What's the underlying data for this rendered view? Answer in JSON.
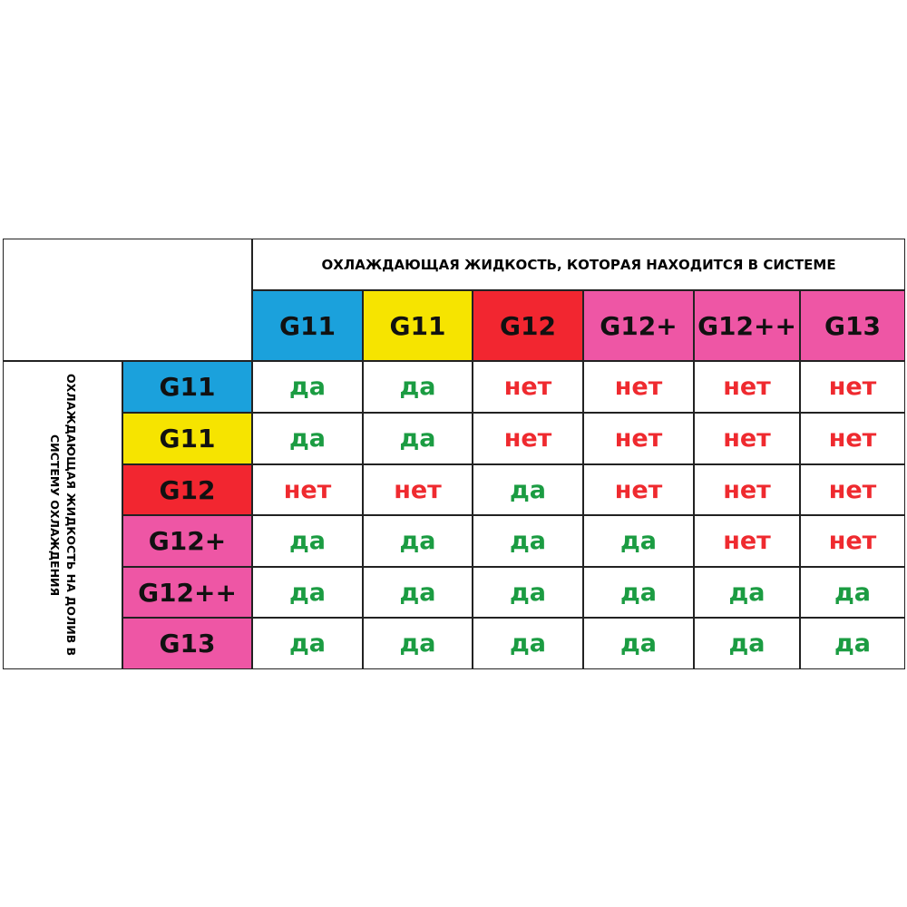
{
  "table": {
    "column_header": "ОХЛАЖДАЮЩАЯ ЖИДКОСТЬ, КОТОРАЯ НАХОДИТСЯ В СИСТЕМЕ",
    "row_header": "ОХЛАЖДАЮЩАЯ ЖИДКОСТЬ НА ДОЛИВ В СИСТЕМУ ОХЛАЖДЕНИЯ",
    "columns": [
      {
        "label": "G11",
        "color": "#1ba1dc"
      },
      {
        "label": "G11",
        "color": "#f6e400"
      },
      {
        "label": "G12",
        "color": "#f22630"
      },
      {
        "label": "G12+",
        "color": "#ee56a5"
      },
      {
        "label": "G12++",
        "color": "#ee56a5"
      },
      {
        "label": "G13",
        "color": "#ee56a5"
      }
    ],
    "rows": [
      {
        "label": "G11",
        "color": "#1ba1dc",
        "cells": [
          {
            "text": "да",
            "color": "#1b9c42"
          },
          {
            "text": "да",
            "color": "#1b9c42"
          },
          {
            "text": "нет",
            "color": "#ef2a2f"
          },
          {
            "text": "нет",
            "color": "#ef2a2f"
          },
          {
            "text": "нет",
            "color": "#ef2a2f"
          },
          {
            "text": "нет",
            "color": "#ef2a2f"
          }
        ]
      },
      {
        "label": "G11",
        "color": "#f6e400",
        "cells": [
          {
            "text": "да",
            "color": "#1b9c42"
          },
          {
            "text": "да",
            "color": "#1b9c42"
          },
          {
            "text": "нет",
            "color": "#ef2a2f"
          },
          {
            "text": "нет",
            "color": "#ef2a2f"
          },
          {
            "text": "нет",
            "color": "#ef2a2f"
          },
          {
            "text": "нет",
            "color": "#ef2a2f"
          }
        ]
      },
      {
        "label": "G12",
        "color": "#f22630",
        "cells": [
          {
            "text": "нет",
            "color": "#ef2a2f"
          },
          {
            "text": "нет",
            "color": "#ef2a2f"
          },
          {
            "text": "да",
            "color": "#1b9c42"
          },
          {
            "text": "нет",
            "color": "#ef2a2f"
          },
          {
            "text": "нет",
            "color": "#ef2a2f"
          },
          {
            "text": "нет",
            "color": "#ef2a2f"
          }
        ]
      },
      {
        "label": "G12+",
        "color": "#ee56a5",
        "cells": [
          {
            "text": "да",
            "color": "#1b9c42"
          },
          {
            "text": "да",
            "color": "#1b9c42"
          },
          {
            "text": "да",
            "color": "#1b9c42"
          },
          {
            "text": "да",
            "color": "#1b9c42"
          },
          {
            "text": "нет",
            "color": "#ef2a2f"
          },
          {
            "text": "нет",
            "color": "#ef2a2f"
          }
        ]
      },
      {
        "label": "G12++",
        "color": "#ee56a5",
        "cells": [
          {
            "text": "да",
            "color": "#1b9c42"
          },
          {
            "text": "да",
            "color": "#1b9c42"
          },
          {
            "text": "да",
            "color": "#1b9c42"
          },
          {
            "text": "да",
            "color": "#1b9c42"
          },
          {
            "text": "да",
            "color": "#1b9c42"
          },
          {
            "text": "да",
            "color": "#1b9c42"
          }
        ]
      },
      {
        "label": "G13",
        "color": "#ee56a5",
        "cells": [
          {
            "text": "да",
            "color": "#1b9c42"
          },
          {
            "text": "да",
            "color": "#1b9c42"
          },
          {
            "text": "да",
            "color": "#1b9c42"
          },
          {
            "text": "да",
            "color": "#1b9c42"
          },
          {
            "text": "да",
            "color": "#1b9c42"
          },
          {
            "text": "да",
            "color": "#1b9c42"
          }
        ]
      }
    ]
  }
}
